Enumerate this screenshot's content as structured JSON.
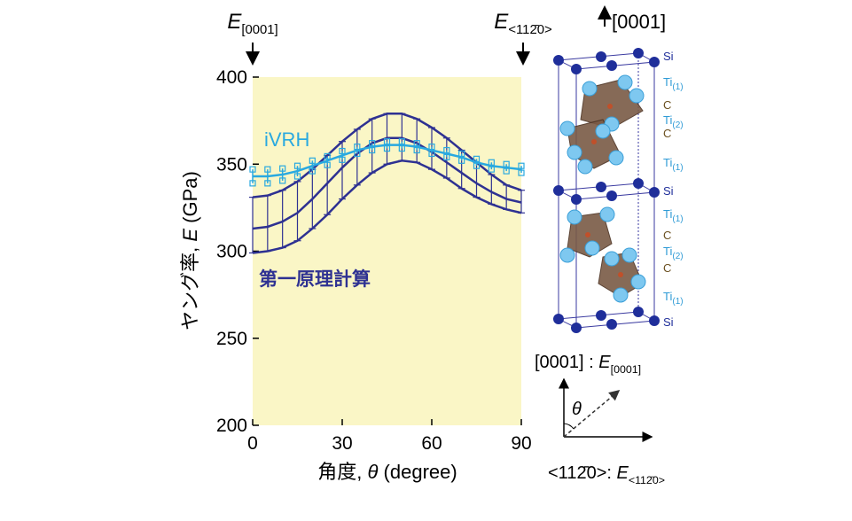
{
  "chart_data": {
    "type": "line",
    "x": [
      0,
      5,
      10,
      15,
      20,
      25,
      30,
      35,
      40,
      45,
      50,
      55,
      60,
      65,
      70,
      75,
      80,
      85,
      90
    ],
    "xlim": [
      0,
      90
    ],
    "xticks": [
      0,
      30,
      60,
      90
    ],
    "ylim": [
      200,
      400
    ],
    "yticks": [
      200,
      250,
      300,
      350,
      400
    ],
    "background": "#faf6c6",
    "y_label": {
      "prefix": "ヤング率, ",
      "symbol": "E",
      "suffix": " (GPa)"
    },
    "x_label": {
      "prefix": "角度, ",
      "symbol": "θ",
      "suffix": " (degree)"
    },
    "top_labels": [
      {
        "main": "E",
        "sub": "[0001]"
      },
      {
        "main": "E",
        "sub": "<112̄0>"
      }
    ],
    "series": [
      {
        "name": "第一原理計算",
        "color": "#2e3192",
        "values": [
          313,
          314,
          317,
          322,
          330,
          339,
          348,
          356,
          362,
          365,
          365,
          362,
          357,
          351,
          345,
          339,
          334,
          330,
          328
        ],
        "upper": [
          331,
          332,
          335,
          340,
          347,
          355,
          363,
          370,
          376,
          379,
          379,
          376,
          371,
          365,
          358,
          351,
          344,
          338,
          335
        ],
        "lower": [
          299,
          300,
          302,
          306,
          313,
          321,
          330,
          338,
          345,
          350,
          352,
          351,
          347,
          342,
          336,
          331,
          327,
          324,
          322
        ]
      },
      {
        "name": "iVRH",
        "color": "#29a9e0",
        "values": [
          343,
          343,
          344,
          346,
          349,
          352,
          355,
          358,
          360,
          361,
          361,
          360,
          358,
          356,
          354,
          351,
          349,
          348,
          347
        ],
        "errors": [
          4,
          4,
          3.5,
          3,
          3,
          2.5,
          2.5,
          2,
          2,
          2,
          2,
          2,
          2,
          2,
          2,
          2,
          2,
          2,
          2
        ]
      }
    ]
  },
  "structure": {
    "direction": "[0001]",
    "labels": [
      {
        "text": "Si"
      },
      {
        "text": "Ti",
        "sub": "(1)"
      },
      {
        "text": "C"
      },
      {
        "text": "Ti",
        "sub": "(2)"
      },
      {
        "text": "C"
      },
      {
        "text": "Ti",
        "sub": "(1)"
      },
      {
        "text": "Si"
      },
      {
        "text": "Ti",
        "sub": "(1)"
      },
      {
        "text": "C"
      },
      {
        "text": "Ti",
        "sub": "(2)"
      },
      {
        "text": "C"
      },
      {
        "text": "Ti",
        "sub": "(1)"
      },
      {
        "text": "Si"
      }
    ]
  },
  "axes_diagram": {
    "vertical": {
      "prefix": "[0001] : ",
      "main": "E",
      "sub": "[0001]"
    },
    "horizontal": {
      "prefix": "<112̄0>: ",
      "main": "E",
      "sub": "<112̄0>"
    },
    "angle": "θ"
  }
}
